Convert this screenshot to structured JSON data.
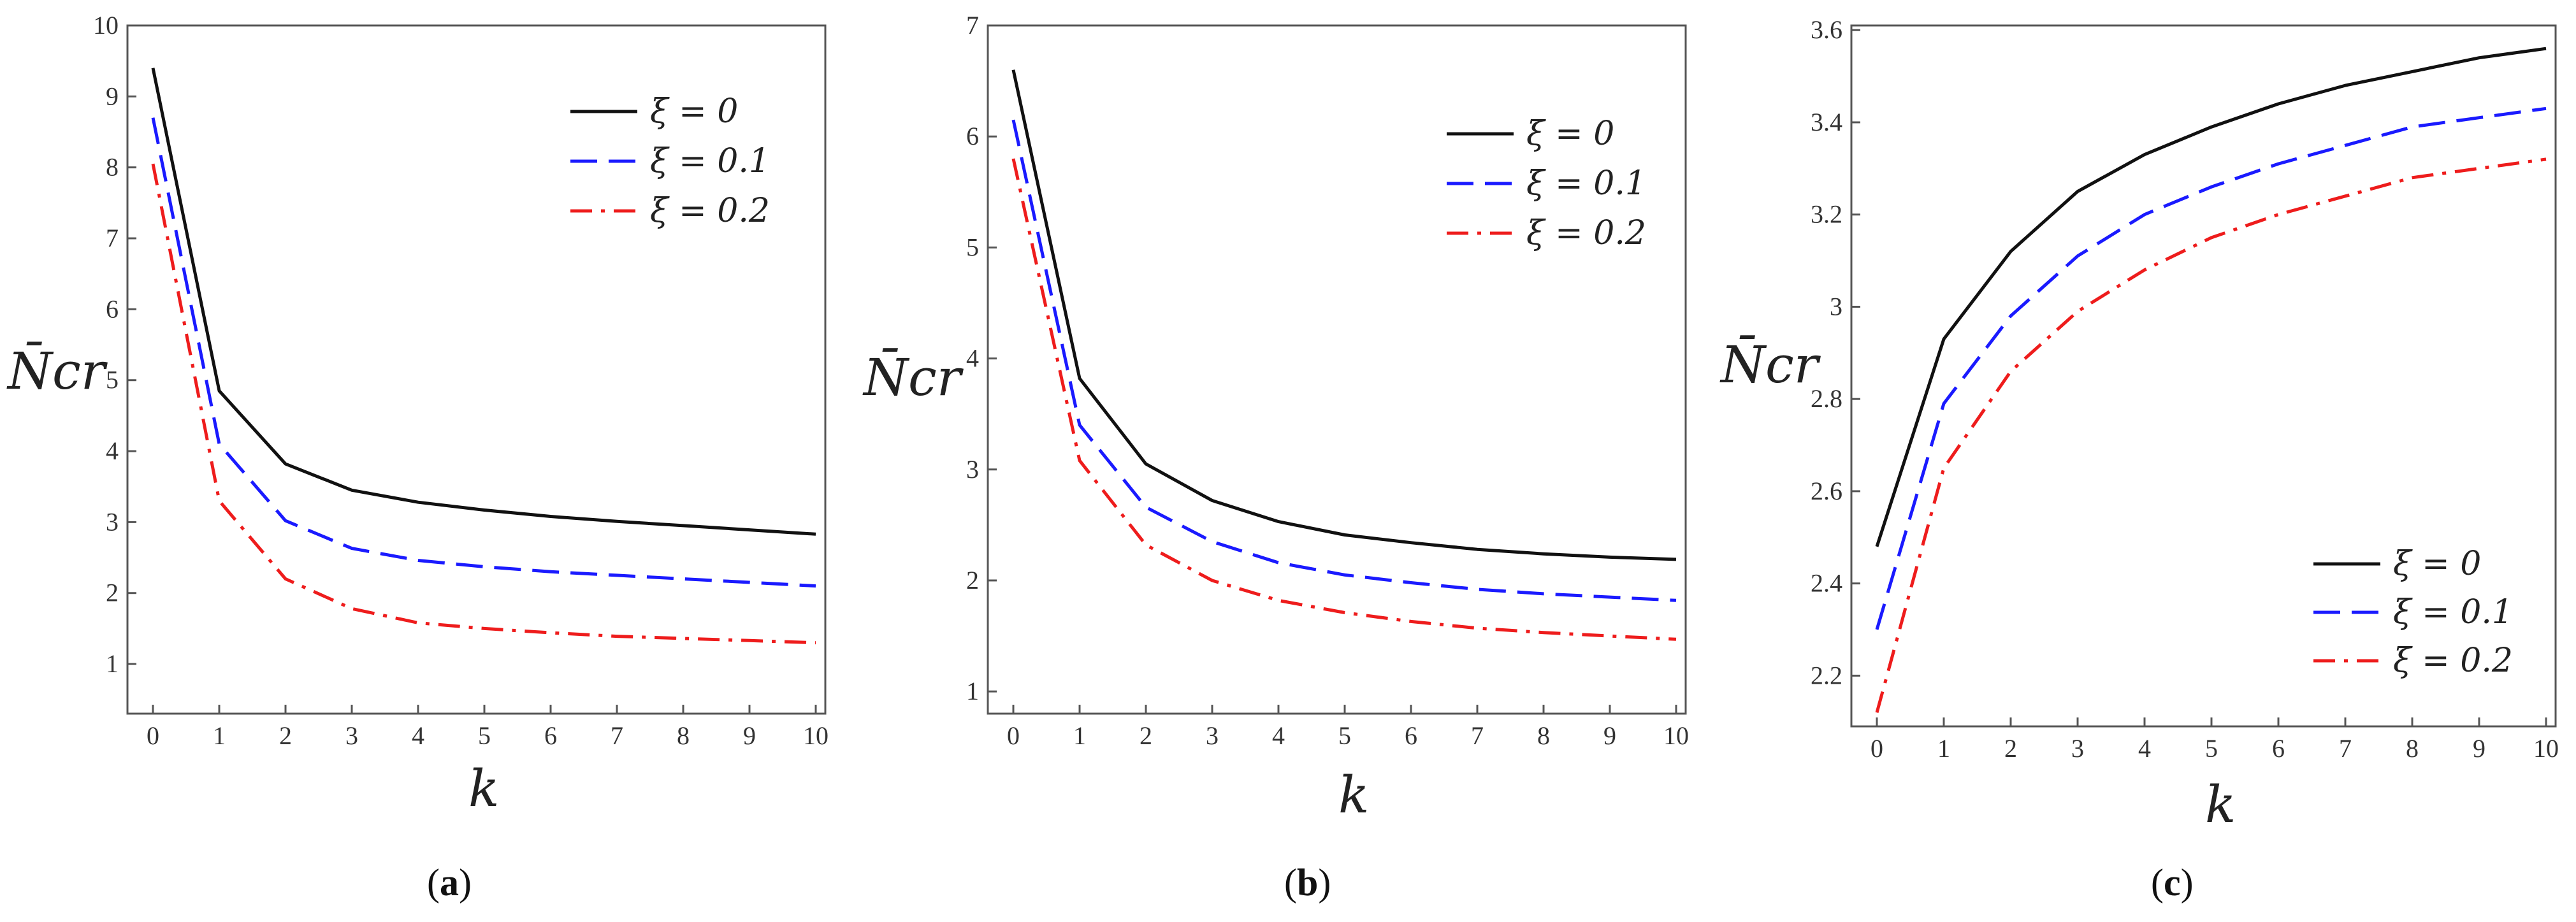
{
  "chart_data": [
    {
      "type": "line",
      "panel_label": "a",
      "xlabel": "k",
      "ylabel": "N̄cr",
      "x": [
        0,
        1,
        2,
        3,
        4,
        5,
        6,
        7,
        8,
        9,
        10
      ],
      "xlim": [
        0,
        10
      ],
      "ylim": [
        0.3,
        10
      ],
      "xticks": [
        "0",
        "1",
        "2",
        "3",
        "4",
        "5",
        "6",
        "7",
        "8",
        "9",
        "10"
      ],
      "yticks": [
        "1",
        "2",
        "3",
        "4",
        "5",
        "6",
        "7",
        "8",
        "9",
        "10"
      ],
      "legend_position": "top-right",
      "grid": false,
      "series": [
        {
          "name": "ξ = 0",
          "color": "#111111",
          "dash": "solid",
          "values": [
            9.4,
            4.85,
            3.82,
            3.45,
            3.28,
            3.17,
            3.08,
            3.01,
            2.95,
            2.89,
            2.83
          ]
        },
        {
          "name": "ξ = 0.1",
          "color": "#1a1aff",
          "dash": "dashed",
          "values": [
            8.7,
            4.1,
            3.02,
            2.63,
            2.46,
            2.37,
            2.3,
            2.25,
            2.2,
            2.15,
            2.1
          ]
        },
        {
          "name": "ξ = 0.2",
          "color": "#ee1c1c",
          "dash": "dash-dot",
          "values": [
            8.05,
            3.3,
            2.2,
            1.78,
            1.58,
            1.5,
            1.44,
            1.39,
            1.36,
            1.33,
            1.3
          ]
        }
      ]
    },
    {
      "type": "line",
      "panel_label": "b",
      "xlabel": "k",
      "ylabel": "N̄cr",
      "x": [
        0,
        1,
        2,
        3,
        4,
        5,
        6,
        7,
        8,
        9,
        10
      ],
      "xlim": [
        0,
        10
      ],
      "ylim": [
        0.8,
        7
      ],
      "xticks": [
        "0",
        "1",
        "2",
        "3",
        "4",
        "5",
        "6",
        "7",
        "8",
        "9",
        "10"
      ],
      "yticks": [
        "1",
        "2",
        "3",
        "4",
        "5",
        "6",
        "7"
      ],
      "legend_position": "top-right",
      "grid": false,
      "series": [
        {
          "name": "ξ = 0",
          "color": "#111111",
          "dash": "solid",
          "values": [
            6.6,
            3.82,
            3.05,
            2.72,
            2.53,
            2.41,
            2.34,
            2.28,
            2.24,
            2.21,
            2.19
          ]
        },
        {
          "name": "ξ = 0.1",
          "color": "#1a1aff",
          "dash": "dashed",
          "values": [
            6.15,
            3.4,
            2.66,
            2.35,
            2.16,
            2.05,
            1.98,
            1.92,
            1.88,
            1.85,
            1.82
          ]
        },
        {
          "name": "ξ = 0.2",
          "color": "#ee1c1c",
          "dash": "dash-dot",
          "values": [
            5.8,
            3.08,
            2.32,
            2.0,
            1.82,
            1.71,
            1.63,
            1.57,
            1.53,
            1.5,
            1.47
          ]
        }
      ]
    },
    {
      "type": "line",
      "panel_label": "c",
      "xlabel": "k",
      "ylabel": "N̄cr",
      "x": [
        0,
        1,
        2,
        3,
        4,
        5,
        6,
        7,
        8,
        9,
        10
      ],
      "xlim": [
        0,
        10
      ],
      "ylim": [
        2.09,
        3.61
      ],
      "xticks": [
        "0",
        "1",
        "2",
        "3",
        "4",
        "5",
        "6",
        "7",
        "8",
        "9",
        "10"
      ],
      "yticks": [
        "2.2",
        "2.4",
        "2.6",
        "2.8",
        "3",
        "3.2",
        "3.4",
        "3.6"
      ],
      "legend_position": "bottom-right",
      "grid": false,
      "series": [
        {
          "name": "ξ = 0",
          "color": "#111111",
          "dash": "solid",
          "values": [
            2.48,
            2.93,
            3.12,
            3.25,
            3.33,
            3.39,
            3.44,
            3.48,
            3.51,
            3.54,
            3.56
          ]
        },
        {
          "name": "ξ = 0.1",
          "color": "#1a1aff",
          "dash": "dashed",
          "values": [
            2.3,
            2.79,
            2.98,
            3.11,
            3.2,
            3.26,
            3.31,
            3.35,
            3.39,
            3.41,
            3.43
          ]
        },
        {
          "name": "ξ = 0.2",
          "color": "#ee1c1c",
          "dash": "dash-dot",
          "values": [
            2.12,
            2.65,
            2.86,
            2.99,
            3.08,
            3.15,
            3.2,
            3.24,
            3.28,
            3.3,
            3.32
          ]
        }
      ]
    }
  ],
  "captions": [
    {
      "open": "(",
      "label": "a",
      "close": ")"
    },
    {
      "open": "(",
      "label": "b",
      "close": ")"
    },
    {
      "open": "(",
      "label": "c",
      "close": ")"
    }
  ]
}
